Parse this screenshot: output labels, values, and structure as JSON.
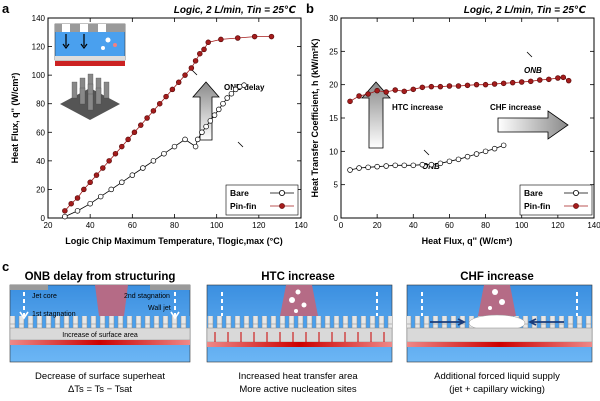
{
  "labels": {
    "a": "a",
    "b": "b",
    "c": "c"
  },
  "chart_data": [
    {
      "type": "scatter",
      "panel": "a",
      "condition": "Logic, 2 L/min, Tin = 25℃",
      "xlabel": "Logic Chip Maximum Temperature, Tlogic,max (°C)",
      "ylabel": "Heat Flux, q'' (W/cm²)",
      "xlim": [
        20,
        140
      ],
      "ylim": [
        0,
        140
      ],
      "xticks": [
        "20",
        "40",
        "60",
        "80",
        "100",
        "120",
        "140"
      ],
      "yticks": [
        "0",
        "20",
        "40",
        "60",
        "80",
        "100",
        "120",
        "140"
      ],
      "annotations": [
        "ONB delay"
      ],
      "series": [
        {
          "name": "Bare",
          "marker": "open-circle",
          "color": "#000000",
          "x": [
            28,
            34,
            40,
            45,
            50,
            55,
            60,
            65,
            70,
            75,
            80,
            85,
            90,
            91,
            93,
            95,
            97,
            99,
            101,
            103,
            105,
            107,
            109,
            111,
            113
          ],
          "y": [
            1,
            5,
            10,
            15,
            20,
            25,
            30,
            35,
            40,
            45,
            50,
            55,
            50,
            55,
            60,
            64,
            68,
            72,
            76,
            80,
            84,
            87,
            90,
            92,
            93
          ]
        },
        {
          "name": "Pin-fin",
          "marker": "filled-circle",
          "color": "#a51c1c",
          "x": [
            28,
            31,
            34,
            37,
            40,
            43,
            46,
            49,
            52,
            55,
            58,
            61,
            64,
            67,
            70,
            73,
            76,
            79,
            82,
            85,
            88,
            90,
            92,
            94,
            96,
            102,
            110,
            118,
            126
          ],
          "y": [
            5,
            10,
            14,
            20,
            25,
            30,
            35,
            40,
            45,
            50,
            55,
            60,
            65,
            70,
            75,
            80,
            85,
            90,
            95,
            100,
            105,
            110,
            115,
            118,
            123,
            125,
            126,
            127,
            127
          ]
        }
      ]
    },
    {
      "type": "scatter",
      "panel": "b",
      "condition": "Logic, 2 L/min, Tin = 25℃",
      "xlabel": "Heat Flux, q'' (W/cm²)",
      "ylabel": "Heat Transfer Coefficient, h (kW/m²K)",
      "xlim": [
        0,
        140
      ],
      "ylim": [
        0,
        30
      ],
      "xticks": [
        "0",
        "20",
        "40",
        "60",
        "80",
        "100",
        "120",
        "140"
      ],
      "yticks": [
        "0",
        "5",
        "10",
        "15",
        "20",
        "25",
        "30"
      ],
      "annotations": [
        "ONB",
        "ONB",
        "HTC increase",
        "CHF increase"
      ],
      "series": [
        {
          "name": "Bare",
          "marker": "open-circle",
          "color": "#000000",
          "x": [
            5,
            10,
            15,
            20,
            25,
            30,
            35,
            40,
            45,
            50,
            55,
            60,
            65,
            70,
            75,
            80,
            85,
            90
          ],
          "y": [
            7.2,
            7.5,
            7.6,
            7.7,
            7.8,
            7.9,
            7.9,
            7.9,
            8.0,
            8.0,
            8.2,
            8.5,
            8.8,
            9.2,
            9.6,
            10.0,
            10.4,
            10.9
          ]
        },
        {
          "name": "Pin-fin",
          "marker": "filled-circle",
          "color": "#a51c1c",
          "x": [
            5,
            10,
            15,
            20,
            25,
            30,
            35,
            40,
            45,
            50,
            55,
            60,
            65,
            70,
            75,
            80,
            85,
            90,
            95,
            100,
            105,
            110,
            115,
            120,
            123,
            126
          ],
          "y": [
            17.5,
            18.3,
            18.6,
            19.1,
            18.9,
            19.2,
            19.0,
            19.3,
            19.6,
            19.7,
            19.7,
            19.8,
            19.8,
            19.9,
            20.0,
            20.0,
            20.1,
            20.2,
            20.3,
            20.4,
            20.5,
            20.7,
            20.8,
            21.0,
            21.1,
            20.6
          ]
        }
      ]
    }
  ],
  "panel_c": {
    "boxes": [
      {
        "title": "ONB delay from structuring",
        "labels": [
          "Jet core",
          "1st stagnation",
          "2nd stagnation",
          "Wall jet",
          "Increase of surface area"
        ],
        "caption1": "Decrease of surface superheat",
        "caption2": "ΔTs = Ts − Tsat"
      },
      {
        "title": "HTC increase",
        "labels": [],
        "caption1": "Increased heat transfer area",
        "caption2": "More active nucleation sites"
      },
      {
        "title": "CHF increase",
        "labels": [],
        "caption1": "Additional forced liquid supply",
        "caption2": "(jet + capillary wicking)"
      }
    ]
  },
  "colors": {
    "pinfin": "#a51c1c",
    "bare": "#000000",
    "liquid": "#4aa0ee",
    "vapor": "#b56b86"
  }
}
